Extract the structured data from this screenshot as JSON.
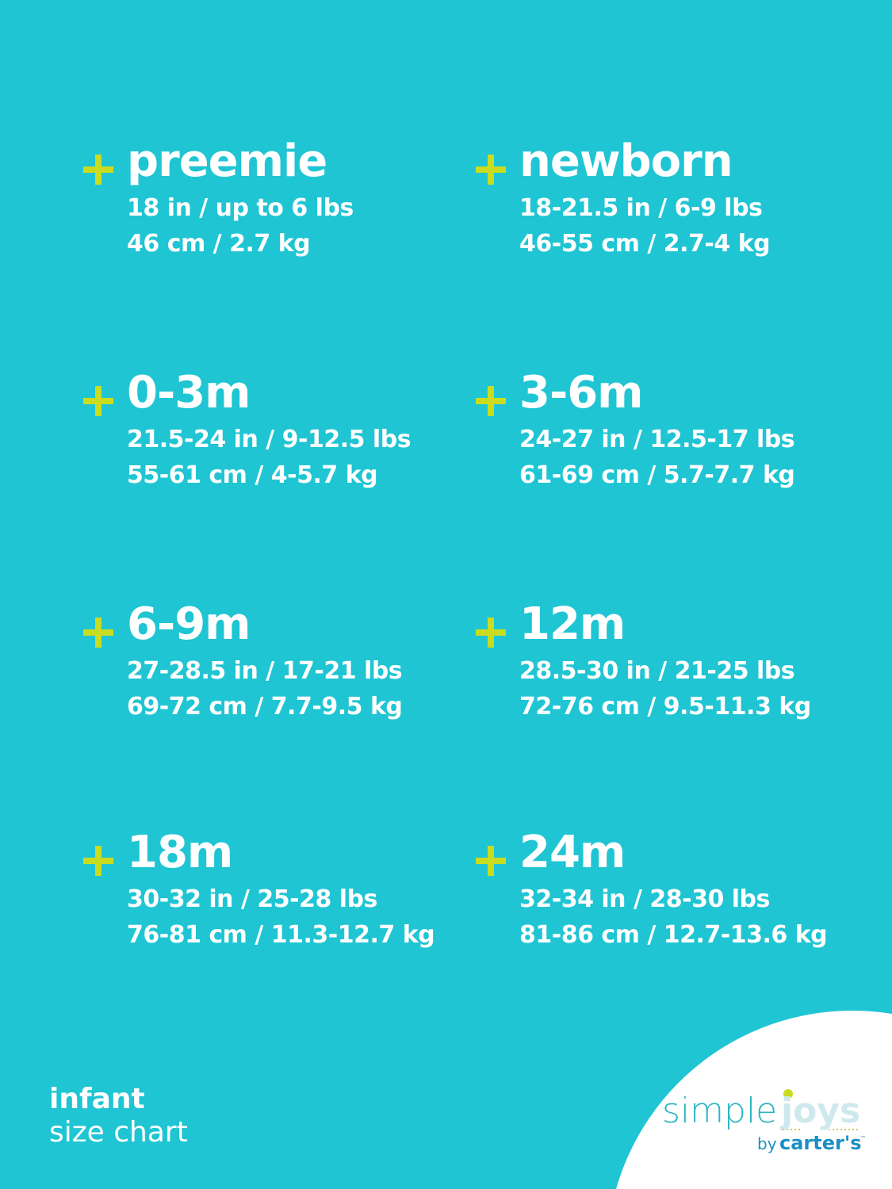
{
  "colors": {
    "background": "#1fc5d3",
    "accent_plus": "#c9dc1f",
    "text": "#ffffff"
  },
  "sizes": [
    {
      "label": "preemie",
      "imperial": "18 in / up to 6 lbs",
      "metric": "46 cm / 2.7 kg"
    },
    {
      "label": "newborn",
      "imperial": "18-21.5 in / 6-9 lbs",
      "metric": "46-55 cm / 2.7-4 kg"
    },
    {
      "label": "0-3m",
      "imperial": "21.5-24 in / 9-12.5 lbs",
      "metric": "55-61 cm / 4-5.7 kg"
    },
    {
      "label": "3-6m",
      "imperial": "24-27 in / 12.5-17 lbs",
      "metric": "61-69 cm / 5.7-7.7 kg"
    },
    {
      "label": "6-9m",
      "imperial": "27-28.5 in / 17-21 lbs",
      "metric": "69-72 cm / 7.7-9.5 kg"
    },
    {
      "label": "12m",
      "imperial": "28.5-30 in / 21-25 lbs",
      "metric": "72-76 cm / 9.5-11.3 kg"
    },
    {
      "label": "18m",
      "imperial": "30-32 in / 25-28 lbs",
      "metric": "76-81 cm / 11.3-12.7 kg"
    },
    {
      "label": "24m",
      "imperial": "32-34 in / 28-30 lbs",
      "metric": "81-86 cm / 12.7-13.6 kg"
    }
  ],
  "footer": {
    "line1": "infant",
    "line2": "size chart"
  },
  "logo": {
    "word1": "simple",
    "word2": "joys",
    "by": "by",
    "brand": "carter's",
    "tm": "™"
  }
}
